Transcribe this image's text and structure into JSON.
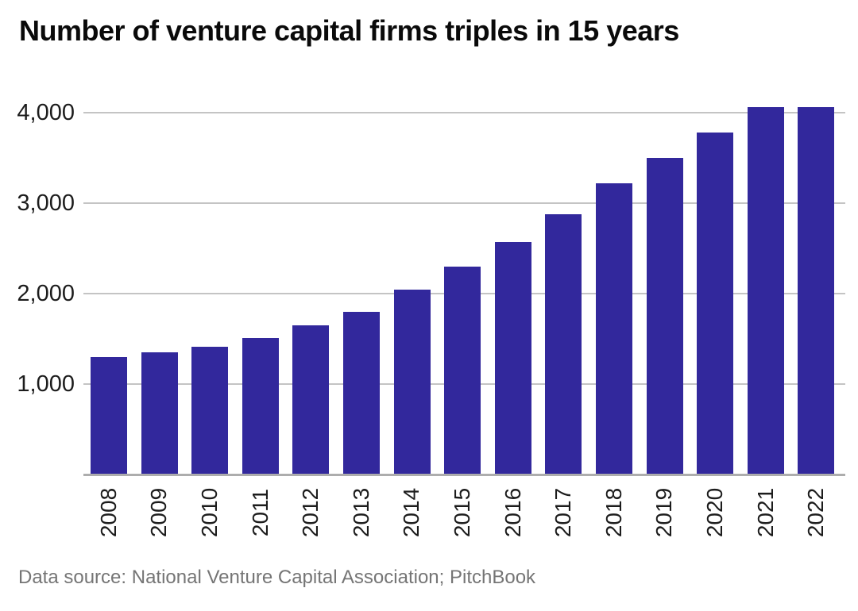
{
  "header": {
    "title": "Number of venture capital firms triples in 15 years"
  },
  "footer": {
    "source": "Data source: National Venture Capital Association; PitchBook"
  },
  "colors": {
    "bar": "#32289C",
    "gridline": "#C4C4C4",
    "baseline": "#ADADAD",
    "title_text": "#0A0A0A",
    "axis_text": "#1C1C1C",
    "source_text": "#757575",
    "background": "#FFFFFF"
  },
  "chart_data": {
    "type": "bar",
    "title": "Number of venture capital firms triples in 15 years",
    "categories": [
      "2008",
      "2009",
      "2010",
      "2011",
      "2012",
      "2013",
      "2014",
      "2015",
      "2016",
      "2017",
      "2018",
      "2019",
      "2020",
      "2021",
      "2022"
    ],
    "values": [
      1300,
      1350,
      1415,
      1510,
      1645,
      1800,
      2045,
      2300,
      2570,
      2880,
      3220,
      3500,
      3780,
      4065,
      4060
    ],
    "xlabel": "",
    "ylabel": "",
    "ylim": [
      0,
      4200
    ],
    "y_ticks": [
      1000,
      2000,
      3000,
      4000
    ],
    "y_tick_labels": [
      "1,000",
      "2,000",
      "3,000",
      "4,000"
    ],
    "grid": "horizontal-only",
    "legend": "none",
    "x_label_rotation": -90,
    "source": "Data source: National Venture Capital Association; PitchBook"
  }
}
